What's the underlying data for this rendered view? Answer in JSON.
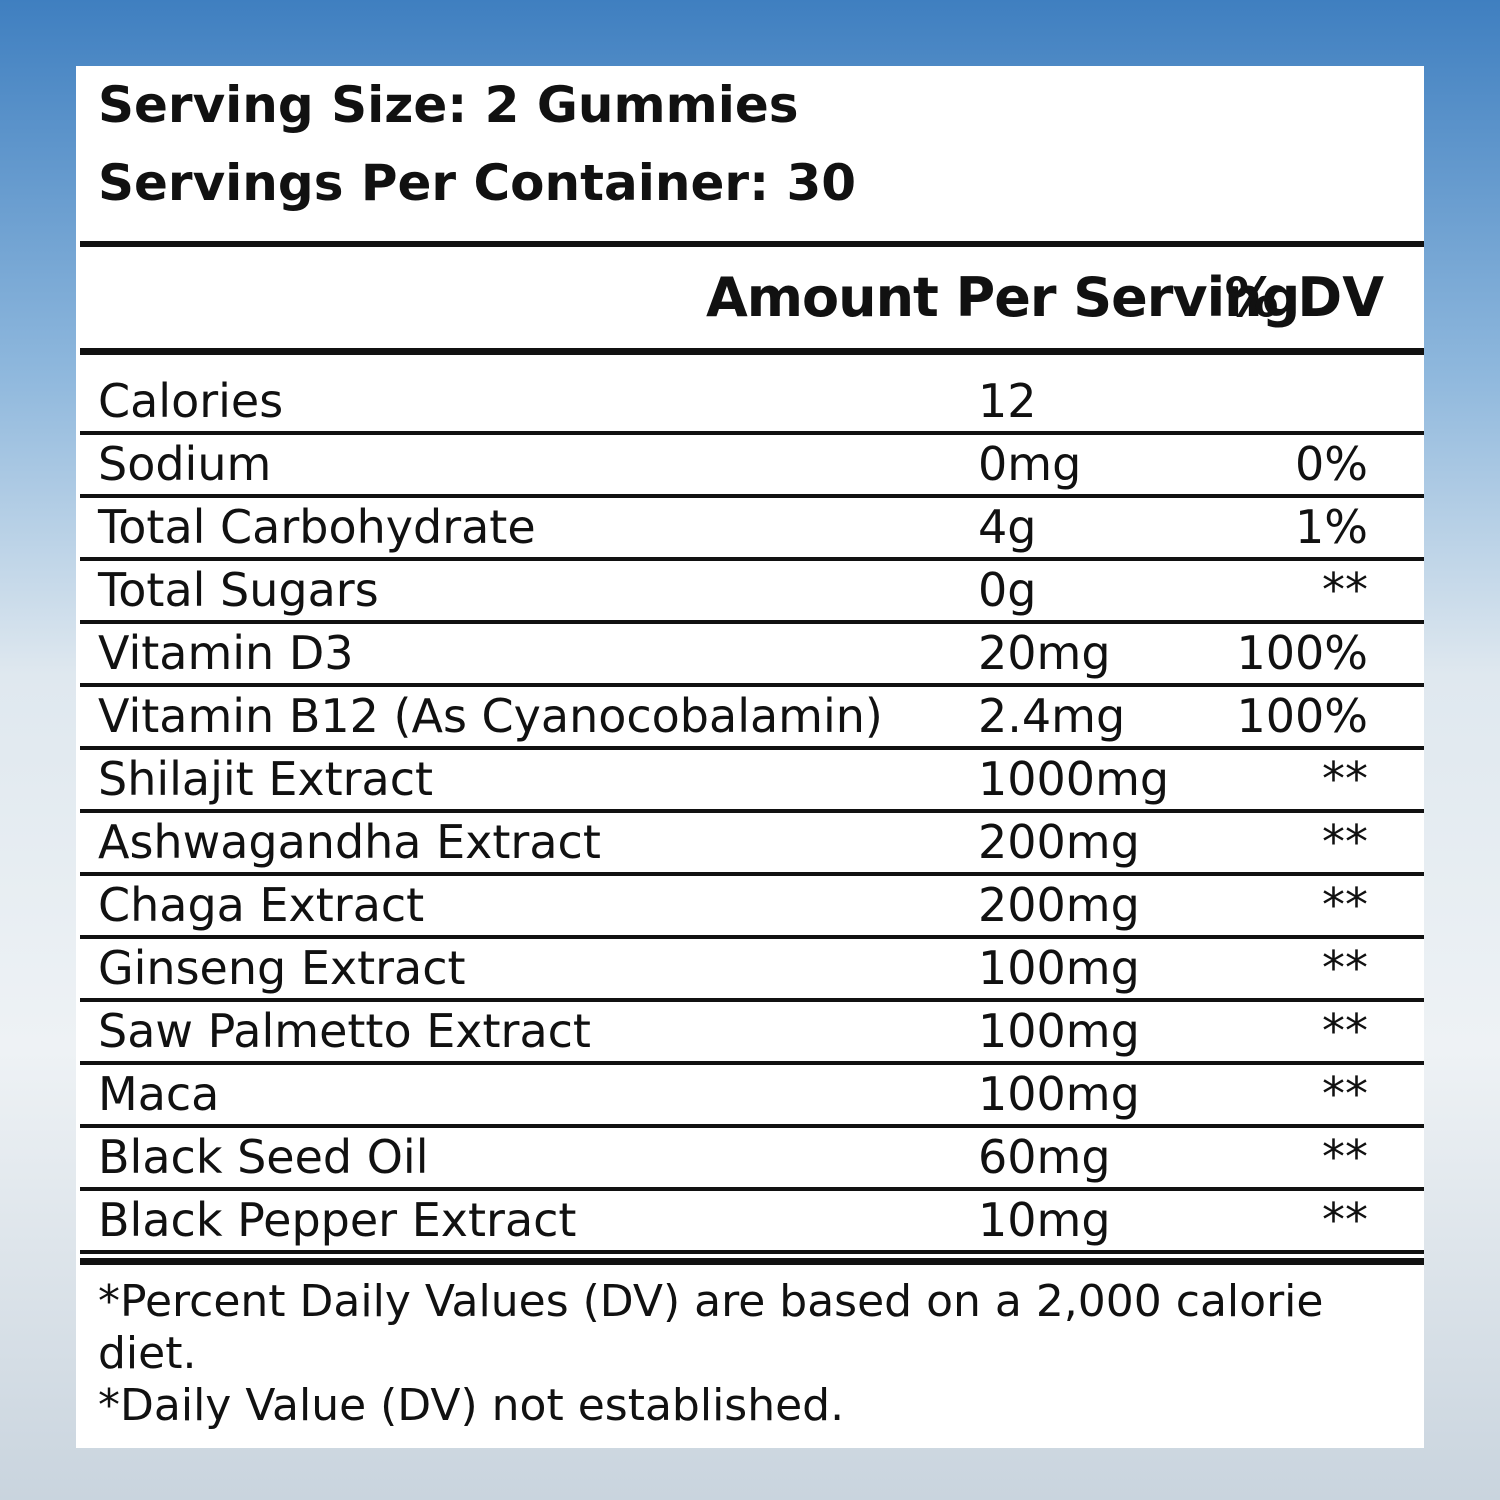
{
  "header": {
    "serving_size": "Serving Size: 2 Gummies",
    "servings_per_container": "Servings Per Container: 30"
  },
  "table": {
    "header": {
      "amount": "Amount Per Serving",
      "dv": "% DV"
    },
    "rows": [
      [
        "Calories",
        "12",
        null
      ],
      [
        "Sodium",
        "0mg",
        "0%"
      ],
      [
        "Total Carbohydrate",
        "4g",
        "1%"
      ],
      [
        "Total Sugars",
        "0g",
        "**"
      ],
      [
        "Vitamin D3",
        "20mg",
        "100%"
      ],
      [
        "Vitamin B12 (As Cyanocobalamin)",
        "2.4mg",
        "100%"
      ],
      [
        "Shilajit Extract",
        "1000mg",
        "**"
      ],
      [
        "Ashwagandha Extract",
        "200mg",
        "**"
      ],
      [
        "Chaga Extract",
        "200mg",
        "**"
      ],
      [
        "Ginseng Extract",
        "100mg",
        "**"
      ],
      [
        "Saw Palmetto Extract",
        "100mg",
        "**"
      ],
      [
        "Maca",
        "100mg",
        "**"
      ],
      [
        "Black Seed Oil",
        "60mg",
        "**"
      ],
      [
        "Black Pepper Extract",
        "10mg",
        "**"
      ]
    ]
  },
  "footnotes": [
    "*Percent Daily Values (DV) are based on a 2,000 calorie diet.",
    "*Daily Value (DV) not established."
  ]
}
